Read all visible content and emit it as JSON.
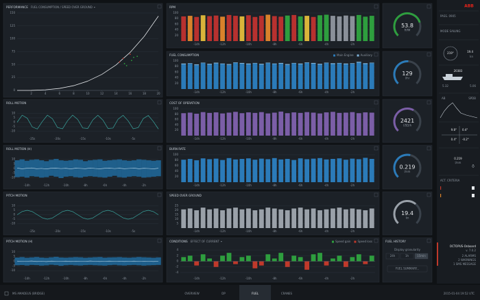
{
  "panels": {
    "performance": {
      "type": "scatter-line",
      "title": "PERFORMANCE",
      "subtitle": "FUEL CONSUMPTION / SPEED OVER GROUND",
      "xlim": [
        0,
        20
      ],
      "ylim": [
        0,
        150
      ],
      "xticks": [
        2,
        4,
        6,
        8,
        10,
        12,
        14,
        16,
        18,
        20
      ],
      "yticks": [
        0,
        25,
        50,
        75,
        100,
        125,
        150
      ],
      "color": "#e6e9ec",
      "x": [
        0,
        2,
        4,
        6,
        8,
        10,
        12,
        14,
        16,
        18,
        20
      ],
      "values": [
        0,
        0.1,
        1.2,
        3.9,
        9.2,
        18,
        31.1,
        49.4,
        73.7,
        104.9,
        144
      ],
      "points": {
        "x": [
          14.5,
          15,
          15.5,
          16,
          16.5,
          15.2,
          16.2,
          17
        ],
        "y": [
          55,
          62,
          48,
          70,
          64,
          52,
          58,
          66
        ],
        "colors": [
          "#c0392b",
          "#c0392b",
          "#2e9e3e",
          "#c0392b",
          "#2e9e3e",
          "#2e9e3e",
          "#2e9e3e",
          "#2e9e3e"
        ]
      }
    },
    "roll": {
      "type": "line",
      "title": "ROLL MOTION",
      "ylim": [
        -15,
        15
      ],
      "yticks": [
        -10,
        -5,
        0,
        5,
        10
      ],
      "categories": [
        null,
        null,
        null,
        {
          "value": -25,
          "label": "-25s"
        },
        null,
        null,
        null,
        null,
        {
          "value": -20,
          "label": "-20s"
        },
        null,
        null,
        null,
        null,
        {
          "value": -15,
          "label": "-15s"
        },
        null,
        null,
        null,
        null,
        {
          "value": -10,
          "label": "-10s"
        },
        null,
        null,
        null,
        null,
        {
          "value": -5,
          "label": "-5s"
        },
        null,
        null,
        null,
        null,
        null
      ],
      "series": [
        {
          "color": "#3aa7a0",
          "values": [
            0,
            7.9,
            4.6,
            -5.3,
            -7.6,
            0.9,
            8,
            3.9,
            -5.9,
            -7.3,
            1.8,
            8,
            3.2,
            -6.4,
            -6.9,
            2.6,
            7.9,
            2.4,
            -6.9,
            -6.5,
            3.4,
            7.8,
            1.6,
            -7.3,
            -6,
            4.1,
            7.6,
            0.8,
            -7.6
          ]
        }
      ]
    },
    "roll_h": {
      "type": "band",
      "title": "ROLL MOTION (H)",
      "ylim": [
        -15,
        15
      ],
      "yticks": [
        -10,
        -5,
        0,
        5,
        10
      ],
      "categories": [
        null,
        null,
        "-14h",
        null,
        null,
        null,
        "-12h",
        null,
        null,
        null,
        "-10h",
        null,
        null,
        null,
        "-8h",
        null,
        null,
        null,
        "-6h",
        null,
        null,
        null,
        "-4h",
        null,
        null,
        null,
        "-2h",
        null,
        null,
        null
      ],
      "band_color": "#1f5f8b",
      "color": "#b9d6e8",
      "high": [
        9,
        10,
        8.5,
        9.5,
        10,
        9,
        8,
        9.5,
        10.5,
        9,
        8.5,
        9,
        10,
        9.5,
        8,
        9,
        9.5,
        10,
        8.5,
        9,
        9.5,
        10,
        9,
        8.5,
        9,
        10,
        9.5,
        9,
        8.5,
        9
      ],
      "low": [
        -9.5,
        -9,
        -10,
        -8.5,
        -9,
        -10,
        -9.5,
        -8,
        -9,
        -10.5,
        -9,
        -8.5,
        -9.5,
        -10,
        -9,
        -8.5,
        -9,
        -9.5,
        -10,
        -9,
        -8,
        -9.5,
        -10,
        -9,
        -8.5,
        -9,
        -10,
        -9.5,
        -9,
        -8.5
      ],
      "mean": [
        0.5,
        -0.3,
        0.2,
        0.6,
        -0.2,
        0.1,
        -0.5,
        0.3,
        0.4,
        -0.1,
        0.2,
        -0.4,
        0.3,
        0.1,
        -0.2,
        0.5,
        0,
        -0.3,
        0.2,
        0.4,
        -0.1,
        0.3,
        -0.2,
        0.1,
        0.5,
        -0.3,
        0.2,
        0,
        -0.4,
        0.3
      ]
    },
    "pitch": {
      "type": "line",
      "title": "PITCH MOTION",
      "ylim": [
        -15,
        15
      ],
      "yticks": [
        -10,
        -5,
        0,
        5,
        10
      ],
      "categories": [
        null,
        null,
        null,
        {
          "value": -25,
          "label": "-25s"
        },
        null,
        null,
        null,
        null,
        {
          "value": -20,
          "label": "-20s"
        },
        null,
        null,
        null,
        null,
        {
          "value": -15,
          "label": "-15s"
        },
        null,
        null,
        null,
        null,
        {
          "value": -10,
          "label": "-10s"
        },
        null,
        null,
        null,
        null,
        {
          "value": -5,
          "label": "-5s"
        },
        null,
        null,
        null,
        null,
        null
      ],
      "series": [
        {
          "color": "#3aa7a0",
          "values": [
            0,
            3.6,
            5,
            3.5,
            0,
            -3.5,
            -5,
            -3.6,
            0,
            3.6,
            5,
            3.5,
            0,
            -3.5,
            -5,
            -3.6,
            0,
            3.6,
            5,
            3.5,
            0,
            -3.5,
            -5,
            -3.6,
            0,
            3.6,
            5,
            3.5,
            0
          ]
        }
      ]
    },
    "pitch_h": {
      "type": "band",
      "title": "PITCH MOTION (H)",
      "ylim": [
        -15,
        15
      ],
      "yticks": [
        -10,
        -5,
        0,
        5,
        10
      ],
      "categories": [
        null,
        null,
        "-14h",
        null,
        null,
        null,
        "-12h",
        null,
        null,
        null,
        "-10h",
        null,
        null,
        null,
        "-8h",
        null,
        null,
        null,
        "-6h",
        null,
        null,
        null,
        "-4h",
        null,
        null,
        null,
        "-2h",
        null,
        null,
        null
      ],
      "band_color": "#1f5f8b",
      "color": "#b9d6e8",
      "high": [
        4,
        4.5,
        3.8,
        4.2,
        4.6,
        4,
        3.7,
        4.3,
        4.8,
        4.1,
        3.9,
        4.2,
        4.5,
        4.3,
        3.8,
        4.1,
        4.4,
        4.6,
        3.9,
        4.2,
        4.3,
        4.5,
        4.1,
        3.9,
        4.2,
        4.6,
        4.3,
        4.1,
        3.8,
        4.2
      ],
      "low": [
        -4.2,
        -4,
        -4.5,
        -3.9,
        -4.1,
        -4.6,
        -4.3,
        -3.7,
        -4.1,
        -4.8,
        -4.2,
        -3.9,
        -4.3,
        -4.5,
        -4.1,
        -3.9,
        -4.2,
        -4.4,
        -4.6,
        -4.1,
        -3.8,
        -4.3,
        -4.5,
        -4.1,
        -3.9,
        -4.2,
        -4.6,
        -4.3,
        -4.1,
        -3.9
      ],
      "mean": [
        0.2,
        -0.1,
        0.1,
        0.3,
        -0.2,
        0,
        -0.3,
        0.2,
        0.1,
        -0.1,
        0.2,
        -0.2,
        0.1,
        0,
        -0.1,
        0.3,
        0,
        -0.2,
        0.1,
        0.2,
        -0.1,
        0.1,
        -0.2,
        0,
        0.2,
        -0.1,
        0.1,
        0,
        -0.2,
        0.1
      ]
    },
    "rpm": {
      "type": "bar",
      "title": "RPM",
      "ylim": [
        0,
        100
      ],
      "yticks": [
        20,
        40,
        60,
        80,
        100
      ],
      "categories": [
        null,
        null,
        "-14h",
        null,
        null,
        null,
        "-12h",
        null,
        null,
        null,
        "-10h",
        null,
        null,
        null,
        "-8h",
        null,
        null,
        null,
        "-6h",
        null,
        null,
        null,
        "-4h",
        null,
        null,
        null,
        "-2h",
        null,
        null,
        null
      ],
      "series": [
        {
          "color": "#b8312f",
          "values": [
            88,
            90,
            86,
            92,
            89,
            91,
            87,
            93,
            90,
            88,
            92,
            86,
            90,
            94,
            89,
            87,
            91,
            93,
            88,
            90,
            86,
            92,
            94,
            90,
            88,
            91,
            89,
            93,
            87,
            90
          ],
          "colors": [
            "#b8312f",
            "#d9822b",
            "#b8312f",
            "#d9b43a",
            "#b8312f",
            "#b8312f",
            "#d9822b",
            "#b8312f",
            "#b8312f",
            "#d9b43a",
            "#b8312f",
            "#b8312f",
            "#b8312f",
            "#d9822b",
            "#b8312f",
            "#b8312f",
            "#2e9e3e",
            "#b8312f",
            "#2e9e3e",
            "#d9b43a",
            "#b8312f",
            "#2e9e3e",
            "#2e9e3e",
            "#8a9099",
            "#8a9099",
            "#8a9099",
            "#8a9099",
            "#2e9e3e",
            "#2e9e3e",
            "#2e9e3e"
          ]
        }
      ]
    },
    "fuel": {
      "type": "bar",
      "title": "FUEL CONSUMPTION",
      "legend": true,
      "ylim": [
        0,
        100
      ],
      "yticks": [
        20,
        40,
        60,
        80,
        100
      ],
      "categories": [
        null,
        null,
        "-14h",
        null,
        null,
        null,
        "-12h",
        null,
        null,
        null,
        "-10h",
        null,
        null,
        null,
        "-8h",
        null,
        null,
        null,
        "-6h",
        null,
        null,
        null,
        "-4h",
        null,
        null,
        null,
        "-2h",
        null,
        null,
        null
      ],
      "series": [
        {
          "name": "Main Engine",
          "color": "#2b7bb9",
          "values": [
            88,
            90,
            85,
            92,
            87,
            91,
            89,
            86,
            93,
            90,
            88,
            91,
            87,
            92,
            89,
            90,
            86,
            91,
            88,
            93,
            90,
            87,
            92,
            89,
            91,
            88,
            90,
            94,
            89,
            92
          ]
        },
        {
          "name": "Auxiliary",
          "color": "#7fb3d9",
          "values": [
            3,
            2,
            3,
            2,
            3,
            3,
            2,
            3,
            2,
            3,
            3,
            2,
            3,
            2,
            2,
            3,
            3,
            2,
            3,
            2,
            3,
            3,
            2,
            3,
            2,
            3,
            2,
            3,
            3,
            2
          ]
        }
      ]
    },
    "cost": {
      "type": "bar",
      "title": "COST OF OPERATION",
      "ylim": [
        0,
        100
      ],
      "yticks": [
        20,
        40,
        60,
        80,
        100
      ],
      "categories": [
        null,
        null,
        "-14h",
        null,
        null,
        null,
        "-12h",
        null,
        null,
        null,
        "-10h",
        null,
        null,
        null,
        "-8h",
        null,
        null,
        null,
        "-6h",
        null,
        null,
        null,
        "-4h",
        null,
        null,
        null,
        "-2h",
        null,
        null,
        null
      ],
      "series": [
        {
          "color": "#7b5ea7",
          "values": [
            84,
            86,
            82,
            88,
            85,
            87,
            83,
            86,
            89,
            84,
            87,
            85,
            88,
            83,
            86,
            90,
            84,
            87,
            85,
            88,
            86,
            83,
            87,
            89,
            85,
            86,
            88,
            84,
            87,
            86
          ]
        }
      ]
    },
    "burn": {
      "type": "bar",
      "title": "BURN RATE",
      "ylim": [
        0,
        100
      ],
      "yticks": [
        20,
        40,
        60,
        80,
        100
      ],
      "categories": [
        null,
        null,
        "-14h",
        null,
        null,
        null,
        "-12h",
        null,
        null,
        null,
        "-10h",
        null,
        null,
        null,
        "-8h",
        null,
        null,
        null,
        "-6h",
        null,
        null,
        null,
        "-4h",
        null,
        null,
        null,
        "-2h",
        null,
        null,
        null
      ],
      "series": [
        {
          "color": "#2b7bb9",
          "values": [
            82,
            85,
            80,
            87,
            84,
            86,
            81,
            88,
            83,
            85,
            87,
            82,
            86,
            84,
            88,
            83,
            85,
            81,
            87,
            84,
            86,
            88,
            83,
            85,
            87,
            82,
            86,
            84,
            89,
            85
          ]
        }
      ]
    },
    "speed": {
      "type": "bar",
      "title": "SPEED OVER GROUND",
      "ylim": [
        0,
        30
      ],
      "yticks": [
        5,
        10,
        15,
        20,
        25
      ],
      "categories": [
        null,
        null,
        "-14h",
        null,
        null,
        null,
        "-12h",
        null,
        null,
        null,
        "-10h",
        null,
        null,
        null,
        "-8h",
        null,
        null,
        null,
        "-6h",
        null,
        null,
        null,
        "-4h",
        null,
        null,
        null,
        "-2h",
        null,
        null,
        null
      ],
      "series": [
        {
          "color": "#9aa1a9",
          "values": [
            21,
            22,
            20,
            23,
            21,
            22,
            20,
            22,
            23,
            21,
            22,
            20,
            21,
            23,
            22,
            21,
            20,
            22,
            23,
            21,
            22,
            20,
            21,
            22,
            23,
            21,
            22,
            21,
            20,
            22
          ]
        }
      ]
    },
    "conditions": {
      "type": "bar",
      "title": "CONDITIONS",
      "subtitle": "EFFECT OF CURRENT",
      "legend": true,
      "ylim": [
        -5,
        5
      ],
      "yticks": [
        -4,
        -2,
        0,
        2,
        4
      ],
      "categories": [
        null,
        null,
        "-14h",
        null,
        null,
        null,
        "-12h",
        null,
        null,
        null,
        "-10h",
        null,
        null,
        null,
        "-8h",
        null,
        null,
        null,
        "-6h",
        null,
        null,
        null,
        "-4h",
        null,
        null,
        null,
        "-2h",
        null,
        null,
        null
      ],
      "series": [
        {
          "name": "Speed gain",
          "color": "#2e9e3e",
          "values": [
            1.5,
            2,
            null,
            2.5,
            1,
            null,
            2,
            3,
            null,
            1.5,
            2,
            null,
            null,
            2.5,
            1,
            3,
            null,
            2,
            1.5,
            null,
            2.5,
            3,
            null,
            1,
            2,
            null,
            1.5,
            2.5,
            null,
            2
          ]
        },
        {
          "name": "Speed loss",
          "color": "#c0392b",
          "values": [
            null,
            null,
            -1.5,
            null,
            null,
            -2,
            null,
            null,
            -1,
            null,
            null,
            -2.5,
            -1.5,
            null,
            null,
            null,
            -2,
            null,
            null,
            -3,
            null,
            null,
            -1.5,
            null,
            null,
            -2,
            null,
            null,
            -1,
            null
          ]
        }
      ]
    }
  },
  "gauges": [
    {
      "value": 53.8,
      "unit": "RPM",
      "range": [
        0,
        70
      ],
      "color": "#2e9e3e"
    },
    {
      "value": 129,
      "unit": "l/hr",
      "range": [
        0,
        250
      ],
      "color": "#2b7bb9"
    },
    {
      "value": 2421,
      "unit": "USD/h",
      "range": [
        0,
        4000
      ],
      "color": "#7b5ea7"
    },
    {
      "value": 0.219,
      "unit": "l/nm",
      "range": [
        0,
        0.4
      ],
      "color": "#2b7bb9"
    },
    {
      "value": 19.4,
      "unit": "kn",
      "range": [
        0,
        30
      ],
      "color": "#9aa1a9"
    }
  ],
  "fuel_history": {
    "title": "FUEL HISTORY",
    "granularity": "Display granularity",
    "options": [
      "24h",
      "1h",
      "15min"
    ],
    "selected": 2,
    "button": "FUEL SUMMARY..."
  },
  "sidebar": {
    "logo": "ABB",
    "pass": "PASS. 0905",
    "mode": "MODE SAILING",
    "heading": "219°",
    "speed": "19.4",
    "speed_unit": "kn",
    "displacement": "20383",
    "draft_fwd": "5.32",
    "draft_aft": "5.06",
    "chart_left": "AB",
    "chart_right": "SPDB",
    "angles": [
      "9.8°",
      "0.4°",
      "0.4°",
      "-0.2°"
    ],
    "burn": "0.219",
    "burn_unit": "l/nm",
    "criteria": "ACT. CRITERIA",
    "product": "OCTOPUS-Onboard",
    "version": "v. 7.0.2",
    "alarms": "2 ALARMS",
    "warnings": "2 WARNINGS",
    "messages": "1 SMS MESSAGE"
  },
  "footer": {
    "vessel": "MS AMADEUS (BRIDGE)",
    "tabs": [
      "OVERVIEW",
      "DP",
      "FUEL",
      "CRANES"
    ],
    "active": 2,
    "timestamp": "2015-01-04  19:52  UTC"
  }
}
